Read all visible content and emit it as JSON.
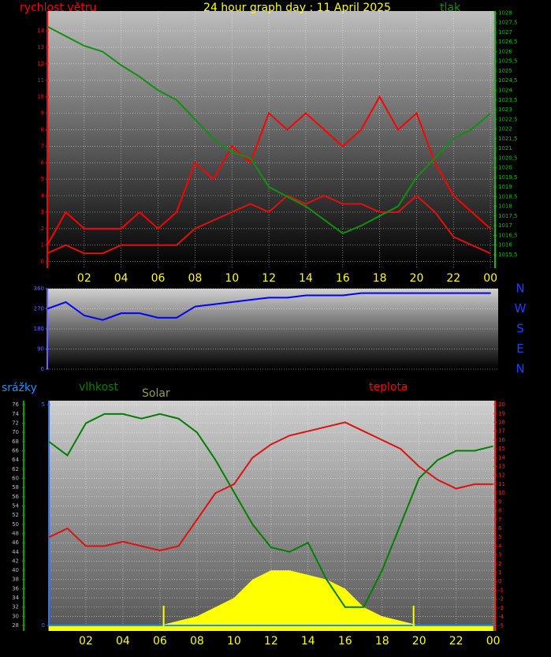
{
  "chart_data": [
    {
      "type": "line",
      "title": "24 hour graph day : 11 April 2025",
      "x": [
        0,
        1,
        2,
        3,
        4,
        5,
        6,
        7,
        8,
        9,
        10,
        11,
        12,
        13,
        14,
        15,
        16,
        17,
        18,
        19,
        20,
        21,
        22,
        23,
        24
      ],
      "xlim": [
        0,
        24.25
      ],
      "xticks": [
        {
          "value": 2,
          "label": "02"
        },
        {
          "value": 4,
          "label": "04"
        },
        {
          "value": 6,
          "label": "06"
        },
        {
          "value": 8,
          "label": "08"
        },
        10,
        12,
        14,
        16,
        18,
        20,
        22,
        {
          "value": 24,
          "label": "00"
        }
      ],
      "ylim": [
        -0.4,
        15.2
      ],
      "yticks": [
        0,
        1,
        2,
        3,
        4,
        5,
        6,
        7,
        8,
        9,
        10,
        11,
        12,
        13,
        14
      ],
      "y2lim": [
        1014.8,
        1028.1
      ],
      "y2ticks": [
        {
          "value": 1015.5,
          "label": "1015,5"
        },
        1016,
        {
          "value": 1016.5,
          "label": "1016,5"
        },
        1017,
        {
          "value": 1017.5,
          "label": "1017,5"
        },
        1018,
        {
          "value": 1018.5,
          "label": "1018,5"
        },
        1019,
        {
          "value": 1019.5,
          "label": "1019,5"
        },
        1020,
        {
          "value": 1020.5,
          "label": "1020,5"
        },
        1021,
        {
          "value": 1021.5,
          "label": "1021,5"
        },
        1022,
        {
          "value": 1022.5,
          "label": "1022,5"
        },
        1023,
        {
          "value": 1023.5,
          "label": "1023,5"
        },
        1024,
        {
          "value": 1024.5,
          "label": "1024,5"
        },
        1025,
        {
          "value": 1025.5,
          "label": "1025,5"
        },
        1026,
        {
          "value": 1026.5,
          "label": "1026,5"
        },
        1027,
        {
          "value": 1027.5,
          "label": "1027,5"
        },
        1028
      ],
      "grid": true,
      "series": [
        {
          "name": "rychlost větru",
          "color": "#ff0000",
          "axis": "y",
          "values": [
            1,
            3,
            2,
            2,
            2,
            3,
            2,
            3,
            6,
            5,
            7,
            6,
            9,
            8,
            9,
            8,
            7,
            8,
            10,
            8,
            9,
            6,
            4,
            3,
            2
          ]
        },
        {
          "color": "#e01010",
          "axis": "y",
          "values": [
            0.5,
            1,
            0.5,
            0.5,
            1,
            1,
            1,
            1,
            2,
            2.5,
            3,
            3.5,
            3,
            4,
            3.5,
            4,
            3.5,
            3.5,
            3,
            3,
            4,
            3,
            1.5,
            1,
            0.5
          ]
        },
        {
          "name": "tlak",
          "color": "#109010",
          "axis": "y2",
          "values": [
            1027.3,
            1026.8,
            1026.3,
            1026,
            1025.3,
            1024.7,
            1024,
            1023.5,
            1022.5,
            1021.5,
            1020.8,
            1020.5,
            1019,
            1018.5,
            1018,
            1017.3,
            1016.6,
            1017,
            1017.5,
            1018,
            1019.5,
            1020.5,
            1021.5,
            1022,
            1022.8
          ]
        }
      ]
    },
    {
      "type": "line",
      "x": [
        0,
        1,
        2,
        3,
        4,
        5,
        6,
        7,
        8,
        9,
        10,
        11,
        12,
        13,
        14,
        15,
        16,
        17,
        18,
        19,
        20,
        21,
        22,
        23,
        24
      ],
      "xlim": [
        0,
        24.4
      ],
      "ylim": [
        0,
        360
      ],
      "yticks": [
        0,
        90,
        180,
        270,
        360
      ],
      "grid": true,
      "direction_labels": [
        "N",
        "W",
        "S",
        "E",
        "N"
      ],
      "series": [
        {
          "color": "#0000ff",
          "axis": "y",
          "values": [
            270,
            300,
            240,
            220,
            250,
            250,
            230,
            230,
            280,
            290,
            300,
            310,
            320,
            320,
            330,
            330,
            330,
            340,
            340,
            340,
            340,
            340,
            340,
            340,
            340
          ]
        }
      ]
    },
    {
      "type": "line",
      "x": [
        0,
        1,
        2,
        3,
        4,
        5,
        6,
        7,
        8,
        9,
        10,
        11,
        12,
        13,
        14,
        15,
        16,
        17,
        18,
        19,
        20,
        21,
        22,
        23,
        24
      ],
      "xlim": [
        0,
        24.1
      ],
      "xticks": [
        {
          "value": 2,
          "label": "02"
        },
        {
          "value": 4,
          "label": "04"
        },
        {
          "value": 6,
          "label": "06"
        },
        {
          "value": 8,
          "label": "08"
        },
        10,
        12,
        14,
        16,
        18,
        20,
        22,
        {
          "value": 24,
          "label": "00"
        }
      ],
      "ylim": [
        26.8,
        76.9
      ],
      "yticks": [
        28,
        30,
        32,
        34,
        36,
        38,
        40,
        42,
        44,
        46,
        48,
        50,
        52,
        54,
        56,
        58,
        60,
        62,
        64,
        66,
        68,
        70,
        72,
        74,
        76
      ],
      "y2lim": [
        -5.6,
        20.45
      ],
      "y2ticks": [
        -5,
        -4,
        -3,
        -2,
        -1,
        0,
        1,
        2,
        3,
        4,
        5,
        6,
        7,
        8,
        9,
        10,
        11,
        12,
        13,
        14,
        15,
        16,
        17,
        18,
        19,
        20
      ],
      "y3lim": [
        -0.125,
        5.09
      ],
      "y3ticks": [
        0,
        5
      ],
      "grid": true,
      "markers": [
        6.2,
        19.7
      ],
      "series": [
        {
          "name": "Solar",
          "type": "area",
          "color": "#ffff00",
          "axis": "y",
          "values": [
            28,
            28,
            28,
            28,
            28,
            28,
            28,
            29,
            30,
            32,
            34,
            38,
            40,
            40,
            39,
            38,
            36,
            32,
            30,
            29,
            28,
            28,
            28,
            28,
            28
          ]
        },
        {
          "name": "srážky",
          "color": "#1e90ff",
          "axis": "y3",
          "values": [
            0,
            0,
            0,
            0,
            0,
            0,
            0,
            0,
            0,
            0,
            0,
            0,
            0,
            0,
            0,
            0,
            0,
            0,
            0,
            0,
            0,
            0,
            0,
            0,
            0
          ]
        },
        {
          "name": "vlhkost",
          "color": "#008000",
          "axis": "y",
          "values": [
            68,
            65,
            72,
            74,
            74,
            73,
            74,
            73,
            70,
            64,
            57,
            50,
            45,
            44,
            46,
            38,
            32,
            32,
            40,
            50,
            60,
            64,
            66,
            66,
            67
          ]
        },
        {
          "name": "teplota",
          "color": "#e01010",
          "axis": "y2",
          "values": [
            5,
            6,
            4,
            4,
            4.5,
            4,
            3.5,
            4,
            7,
            10,
            11,
            14,
            15.5,
            16.5,
            17,
            17.5,
            18,
            17,
            16,
            15,
            13,
            11.5,
            10.5,
            11,
            11
          ]
        }
      ]
    }
  ]
}
